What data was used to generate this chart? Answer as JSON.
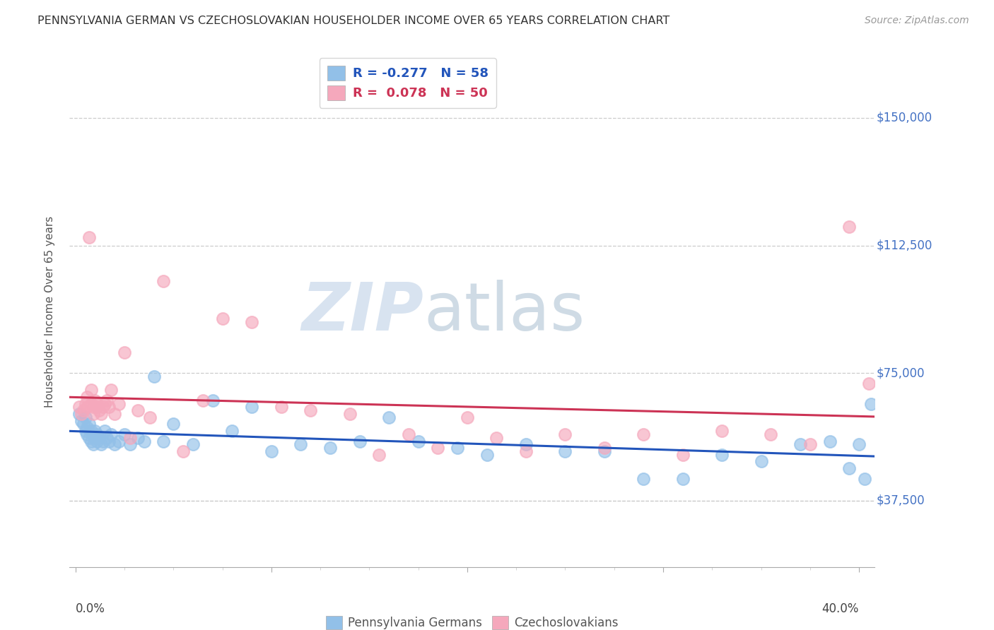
{
  "title": "PENNSYLVANIA GERMAN VS CZECHOSLOVAKIAN HOUSEHOLDER INCOME OVER 65 YEARS CORRELATION CHART",
  "source": "Source: ZipAtlas.com",
  "ylabel": "Householder Income Over 65 years",
  "y_tick_labels": [
    "$37,500",
    "$75,000",
    "$112,500",
    "$150,000"
  ],
  "y_tick_values": [
    37500,
    75000,
    112500,
    150000
  ],
  "ylim": [
    18000,
    168000
  ],
  "xlim": [
    -0.003,
    0.408
  ],
  "blue_color": "#92c0e8",
  "pink_color": "#f5a8bc",
  "blue_line_color": "#2255bb",
  "pink_line_color": "#cc3355",
  "watermark_zip": "ZIP",
  "watermark_atlas": "atlas",
  "legend_blue_R": "-0.277",
  "legend_blue_N": "58",
  "legend_pink_R": "0.078",
  "legend_pink_N": "50",
  "blue_points_x": [
    0.002,
    0.003,
    0.004,
    0.005,
    0.005,
    0.006,
    0.006,
    0.007,
    0.007,
    0.008,
    0.008,
    0.009,
    0.009,
    0.01,
    0.01,
    0.011,
    0.011,
    0.012,
    0.013,
    0.014,
    0.015,
    0.016,
    0.017,
    0.018,
    0.02,
    0.022,
    0.025,
    0.028,
    0.032,
    0.035,
    0.04,
    0.045,
    0.05,
    0.06,
    0.07,
    0.08,
    0.09,
    0.1,
    0.115,
    0.13,
    0.145,
    0.16,
    0.175,
    0.195,
    0.21,
    0.23,
    0.25,
    0.27,
    0.29,
    0.31,
    0.33,
    0.35,
    0.37,
    0.385,
    0.395,
    0.4,
    0.403,
    0.406
  ],
  "blue_points_y": [
    63000,
    61000,
    60000,
    62000,
    58000,
    59000,
    57000,
    60000,
    56000,
    58000,
    55000,
    57000,
    54000,
    58000,
    56000,
    57000,
    55000,
    56000,
    54000,
    55000,
    58000,
    56000,
    55000,
    57000,
    54000,
    55000,
    57000,
    54000,
    56000,
    55000,
    74000,
    55000,
    60000,
    54000,
    67000,
    58000,
    65000,
    52000,
    54000,
    53000,
    55000,
    62000,
    55000,
    53000,
    51000,
    54000,
    52000,
    52000,
    44000,
    44000,
    51000,
    49000,
    54000,
    55000,
    47000,
    54000,
    44000,
    66000
  ],
  "pink_points_x": [
    0.002,
    0.003,
    0.004,
    0.005,
    0.006,
    0.006,
    0.007,
    0.008,
    0.008,
    0.009,
    0.009,
    0.01,
    0.011,
    0.011,
    0.012,
    0.013,
    0.014,
    0.015,
    0.016,
    0.017,
    0.018,
    0.02,
    0.022,
    0.025,
    0.028,
    0.032,
    0.038,
    0.045,
    0.055,
    0.065,
    0.075,
    0.09,
    0.105,
    0.12,
    0.14,
    0.155,
    0.17,
    0.185,
    0.2,
    0.215,
    0.23,
    0.25,
    0.27,
    0.29,
    0.31,
    0.33,
    0.355,
    0.375,
    0.395,
    0.405
  ],
  "pink_points_y": [
    65000,
    63000,
    64000,
    66000,
    68000,
    65000,
    115000,
    70000,
    66000,
    65000,
    63000,
    67000,
    66000,
    65000,
    64000,
    63000,
    65000,
    66000,
    67000,
    65000,
    70000,
    63000,
    66000,
    81000,
    56000,
    64000,
    62000,
    102000,
    52000,
    67000,
    91000,
    90000,
    65000,
    64000,
    63000,
    51000,
    57000,
    53000,
    62000,
    56000,
    52000,
    57000,
    53000,
    57000,
    51000,
    58000,
    57000,
    54000,
    118000,
    72000
  ]
}
